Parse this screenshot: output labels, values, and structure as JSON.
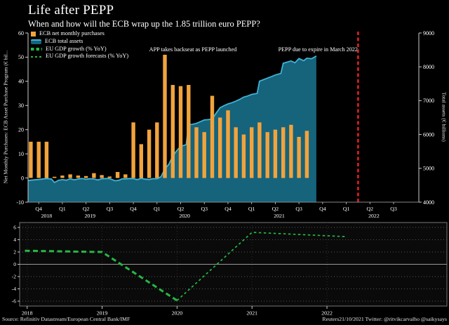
{
  "page": {
    "title": "Life after PEPP",
    "subtitle": "When and how will the ECB wrap up the 1.85 trillion euro PEPP?",
    "source": "Source: Refinitiv Datastream/European Central Bank/IMF",
    "credit": "Reuters21/10/2021 Twitter: @ritvikcarvalho @saikysays"
  },
  "colors": {
    "background": "#000000",
    "text": "#ffffff",
    "bars": "#f2a33c",
    "area_fill": "#16637c",
    "area_line": "#3fb3d4",
    "gdp_line": "#25b845",
    "expiry_line": "#e02020",
    "axis_light": "#cccccc",
    "axis_mid": "#888888",
    "grid_dotted": "#555555"
  },
  "chart_data": [
    {
      "type": "bar+area",
      "panel": "top",
      "ylabel_left": "Net Monthly Purchases: ECB Asset Purchase Program (€ bil...",
      "ylabel_right": "Total assets (€ billions)",
      "ylim_left": [
        -10,
        60
      ],
      "yticks_left": [
        60,
        50,
        40,
        30,
        20,
        10,
        0,
        -10
      ],
      "ylim_right": [
        4000,
        9000
      ],
      "yticks_right": [
        9000,
        8000,
        7000,
        6000,
        5000,
        4000
      ],
      "x_unit": "month",
      "x_first_bar": "Oct 2018",
      "quarter_ticks": [
        {
          "label": "Q4",
          "month": 1
        },
        {
          "label": "Q1",
          "month": 4
        },
        {
          "label": "Q2",
          "month": 7
        },
        {
          "label": "Q3",
          "month": 10
        },
        {
          "label": "Q4",
          "month": 13
        },
        {
          "label": "Q1",
          "month": 16
        },
        {
          "label": "Q2",
          "month": 19
        },
        {
          "label": "Q3",
          "month": 22
        },
        {
          "label": "Q4",
          "month": 25
        },
        {
          "label": "Q1",
          "month": 28
        },
        {
          "label": "Q2",
          "month": 31
        },
        {
          "label": "Q3",
          "month": 34
        },
        {
          "label": "Q4",
          "month": 37
        },
        {
          "label": "Q1",
          "month": 40
        },
        {
          "label": "Q2",
          "month": 43
        },
        {
          "label": "Q3",
          "month": 46
        }
      ],
      "year_ticks": [
        {
          "label": "2018",
          "month": 2
        },
        {
          "label": "2019",
          "month": 7.5
        },
        {
          "label": "2020",
          "month": 19.5
        },
        {
          "label": "2021",
          "month": 31.5
        },
        {
          "label": "2022",
          "month": 43.5
        }
      ],
      "legend": [
        {
          "label": "ECB net monthly purchases",
          "marker": "square",
          "color": "#f2a33c"
        },
        {
          "label": "ECB total assets",
          "marker": "area",
          "color": "#3fb3d4"
        },
        {
          "label": "EU GDP growth (% YoY)",
          "marker": "dash-thick",
          "color": "#25b845"
        },
        {
          "label": "EU GDP growth forecasts (% YoY)",
          "marker": "dash-thin",
          "color": "#25b845"
        }
      ],
      "annotations": [
        {
          "text": "APP takes backseat as PEPP launched"
        },
        {
          "text": "PEPP due to expire in March 2022"
        }
      ],
      "expiry_line": {
        "month": 41.5,
        "label": "PEPP due to expire in March 2022",
        "color": "#e02020",
        "style": "dashed"
      },
      "series": [
        {
          "name": "ECB net monthly purchases",
          "type": "bar",
          "axis": "left",
          "values": [
            15,
            15,
            15,
            0.5,
            1,
            1.5,
            1,
            0.8,
            2,
            1.2,
            0.6,
            2.5,
            1.5,
            23,
            14,
            20,
            23,
            51,
            38.5,
            38,
            38.5,
            21,
            19,
            34,
            25,
            28,
            21,
            18,
            21,
            23,
            19,
            20,
            21,
            22,
            17,
            19.5
          ]
        },
        {
          "name": "ECB total assets",
          "type": "area",
          "axis": "right",
          "points": [
            [
              -0.35,
              4640
            ],
            [
              0,
              4650
            ],
            [
              1,
              4670
            ],
            [
              2,
              4700
            ],
            [
              2.6,
              4685
            ],
            [
              3,
              4580
            ],
            [
              3.5,
              4645
            ],
            [
              4,
              4665
            ],
            [
              4.5,
              4650
            ],
            [
              5,
              4690
            ],
            [
              5.5,
              4660
            ],
            [
              6,
              4685
            ],
            [
              6.5,
              4700
            ],
            [
              7,
              4675
            ],
            [
              7.5,
              4695
            ],
            [
              8,
              4685
            ],
            [
              8.5,
              4655
            ],
            [
              9,
              4690
            ],
            [
              9.5,
              4700
            ],
            [
              10,
              4695
            ],
            [
              10.7,
              4630
            ],
            [
              11.2,
              4650
            ],
            [
              11.6,
              4690
            ],
            [
              12,
              4685
            ],
            [
              12.5,
              4700
            ],
            [
              13,
              4695
            ],
            [
              13.5,
              4665
            ],
            [
              14,
              4705
            ],
            [
              14.5,
              4680
            ],
            [
              15,
              4670
            ],
            [
              15.5,
              4695
            ],
            [
              16,
              4690
            ],
            [
              16.5,
              4750
            ],
            [
              17,
              4980
            ],
            [
              17.5,
              5120
            ],
            [
              18,
              5360
            ],
            [
              18.5,
              5520
            ],
            [
              19,
              5650
            ],
            [
              19.7,
              5700
            ],
            [
              20,
              6290
            ],
            [
              20.5,
              6300
            ],
            [
              21,
              6330
            ],
            [
              21.5,
              6380
            ],
            [
              22,
              6430
            ],
            [
              22.5,
              6440
            ],
            [
              23,
              6455
            ],
            [
              23.5,
              6630
            ],
            [
              24,
              6790
            ],
            [
              24.5,
              6850
            ],
            [
              25,
              6905
            ],
            [
              25.5,
              6940
            ],
            [
              26,
              6985
            ],
            [
              26.5,
              7040
            ],
            [
              27,
              7105
            ],
            [
              27.5,
              7140
            ],
            [
              28,
              7185
            ],
            [
              28.7,
              7215
            ],
            [
              29,
              7575
            ],
            [
              29.5,
              7620
            ],
            [
              30,
              7665
            ],
            [
              30.5,
              7710
            ],
            [
              31,
              7760
            ],
            [
              31.7,
              7805
            ],
            [
              32,
              8105
            ],
            [
              32.5,
              8140
            ],
            [
              33,
              8175
            ],
            [
              33.5,
              8120
            ],
            [
              34,
              8245
            ],
            [
              34.6,
              8180
            ],
            [
              35,
              8255
            ],
            [
              35.6,
              8240
            ],
            [
              36.2,
              8320
            ]
          ]
        }
      ]
    },
    {
      "type": "line",
      "panel": "bottom",
      "ylim": [
        -6.8,
        6.8
      ],
      "yticks": [
        6,
        4,
        2,
        0,
        -2,
        -4,
        -6
      ],
      "xlim": [
        2017.9,
        2023.6
      ],
      "xticks": [
        2018,
        2019,
        2020,
        2021,
        2022
      ],
      "zero_line": true,
      "grid": "dotted",
      "series": [
        {
          "name": "EU GDP growth (% YoY)",
          "style": "dash-thick",
          "color": "#25b845",
          "points": [
            [
              2017.97,
              2.2
            ],
            [
              2018,
              2.2
            ],
            [
              2019,
              2.0
            ],
            [
              2020,
              -5.9
            ]
          ]
        },
        {
          "name": "EU GDP growth forecasts (% YoY)",
          "style": "dash-thin",
          "color": "#25b845",
          "points": [
            [
              2020,
              -5.9
            ],
            [
              2021,
              5.2
            ],
            [
              2022.25,
              4.5
            ]
          ]
        }
      ]
    }
  ]
}
